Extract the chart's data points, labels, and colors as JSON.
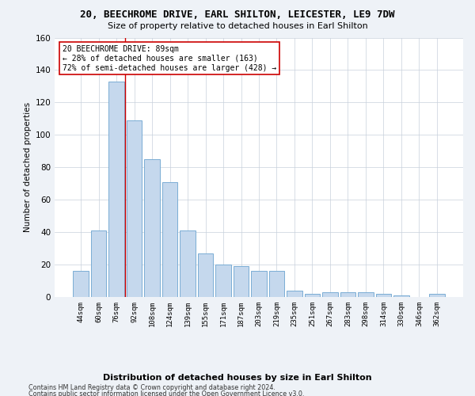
{
  "title1": "20, BEECHROME DRIVE, EARL SHILTON, LEICESTER, LE9 7DW",
  "title2": "Size of property relative to detached houses in Earl Shilton",
  "xlabel": "Distribution of detached houses by size in Earl Shilton",
  "ylabel": "Number of detached properties",
  "footer1": "Contains HM Land Registry data © Crown copyright and database right 2024.",
  "footer2": "Contains public sector information licensed under the Open Government Licence v3.0.",
  "bar_labels": [
    "44sqm",
    "60sqm",
    "76sqm",
    "92sqm",
    "108sqm",
    "124sqm",
    "139sqm",
    "155sqm",
    "171sqm",
    "187sqm",
    "203sqm",
    "219sqm",
    "235sqm",
    "251sqm",
    "267sqm",
    "283sqm",
    "298sqm",
    "314sqm",
    "330sqm",
    "346sqm",
    "362sqm"
  ],
  "bar_values": [
    16,
    41,
    133,
    109,
    85,
    71,
    41,
    27,
    20,
    19,
    16,
    16,
    4,
    2,
    3,
    3,
    3,
    2,
    1,
    0,
    2
  ],
  "bar_color": "#c5d8ed",
  "bar_edge_color": "#7aadd4",
  "ylim": [
    0,
    160
  ],
  "yticks": [
    0,
    20,
    40,
    60,
    80,
    100,
    120,
    140,
    160
  ],
  "vline_color": "#cc0000",
  "annotation_text": "20 BEECHROME DRIVE: 89sqm\n← 28% of detached houses are smaller (163)\n72% of semi-detached houses are larger (428) →",
  "annotation_box_color": "#ffffff",
  "annotation_box_edge": "#cc0000",
  "bg_color": "#eef2f7",
  "plot_bg_color": "#ffffff",
  "grid_color": "#c8d0dc"
}
